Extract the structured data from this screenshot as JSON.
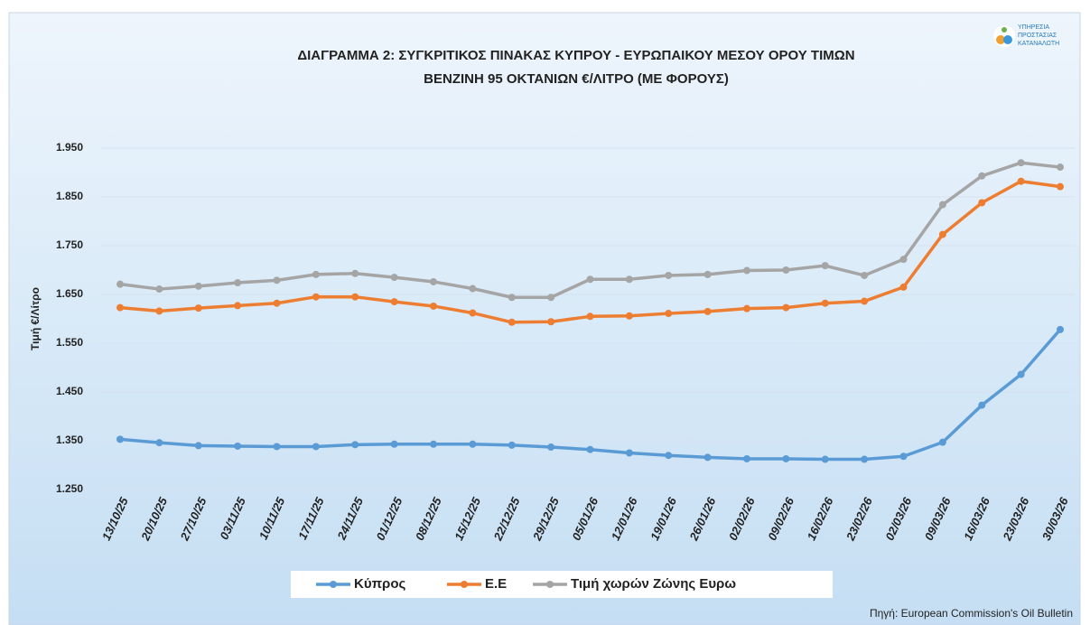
{
  "logo": [
    "ΥΠΗΡΕΣΙΑ",
    "ΠΡΟΣΤΑΣΙΑΣ",
    "ΚΑΤΑΝΑΛΩΤΗ"
  ],
  "source": "Πηγή: European Commission's Oil Bulletin",
  "chart_data": {
    "type": "line",
    "title": [
      "ΔΙΑΓΡΑΜΜΑ 2: ΣΥΓΚΡΙΤΙΚΟΣ ΠΙΝΑΚΑΣ ΚΥΠΡΟΥ - ΕΥΡΩΠΑΙΚΟΥ ΜΕΣΟΥ ΟΡΟΥ ΤΙΜΩΝ",
      "ΒΕΝΖΙΝΗ 95 ΟΚΤΑΝΙΩΝ €/ΛΙΤΡΟ (ΜΕ ΦΟΡΟΥΣ)"
    ],
    "ylabel": "Τιμή €/Λίτρο",
    "categories": [
      "13/10/25",
      "20/10/25",
      "27/10/25",
      "03/11/25",
      "10/11/25",
      "17/11/25",
      "24/11/25",
      "01/12/25",
      "08/12/25",
      "15/12/25",
      "22/12/25",
      "29/12/25",
      "05/01/26",
      "12/01/26",
      "19/01/26",
      "26/01/26",
      "02/02/26",
      "09/02/26",
      "16/02/26",
      "23/02/26",
      "02/03/26",
      "09/03/26",
      "16/03/26",
      "23/03/26",
      "30/03/26"
    ],
    "series": [
      {
        "name": "Κύπρος",
        "color": "#5b9bd5",
        "values": [
          1.353,
          1.346,
          1.34,
          1.339,
          1.338,
          1.338,
          1.342,
          1.343,
          1.343,
          1.343,
          1.341,
          1.337,
          1.332,
          1.325,
          1.32,
          1.316,
          1.313,
          1.313,
          1.312,
          1.312,
          1.318,
          1.347,
          1.423,
          1.486,
          1.578
        ]
      },
      {
        "name": "Ε.Ε",
        "color": "#ed7d31",
        "values": [
          1.623,
          1.616,
          1.622,
          1.627,
          1.632,
          1.645,
          1.645,
          1.635,
          1.626,
          1.612,
          1.593,
          1.594,
          1.605,
          1.606,
          1.611,
          1.615,
          1.621,
          1.623,
          1.632,
          1.636,
          1.665,
          1.773,
          1.838,
          1.882,
          1.871
        ]
      },
      {
        "name": "Τιμή χωρών Ζώνης Ευρω",
        "color": "#a5a5a5",
        "values": [
          1.671,
          1.661,
          1.667,
          1.674,
          1.679,
          1.691,
          1.693,
          1.685,
          1.676,
          1.662,
          1.644,
          1.644,
          1.681,
          1.681,
          1.689,
          1.691,
          1.699,
          1.7,
          1.709,
          1.689,
          1.722,
          1.834,
          1.893,
          1.92,
          1.911
        ]
      }
    ],
    "ylim": [
      1.25,
      1.95
    ],
    "yticks": [
      {
        "value": 1.25,
        "label": "1.250"
      },
      {
        "value": 1.35,
        "label": "1.350"
      },
      {
        "value": 1.45,
        "label": "1.450"
      },
      {
        "value": 1.55,
        "label": "1.550"
      },
      {
        "value": 1.65,
        "label": "1.650"
      },
      {
        "value": 1.75,
        "label": "1.750"
      },
      {
        "value": 1.85,
        "label": "1.850"
      },
      {
        "value": 1.95,
        "label": "1.950"
      }
    ],
    "grid": true
  }
}
